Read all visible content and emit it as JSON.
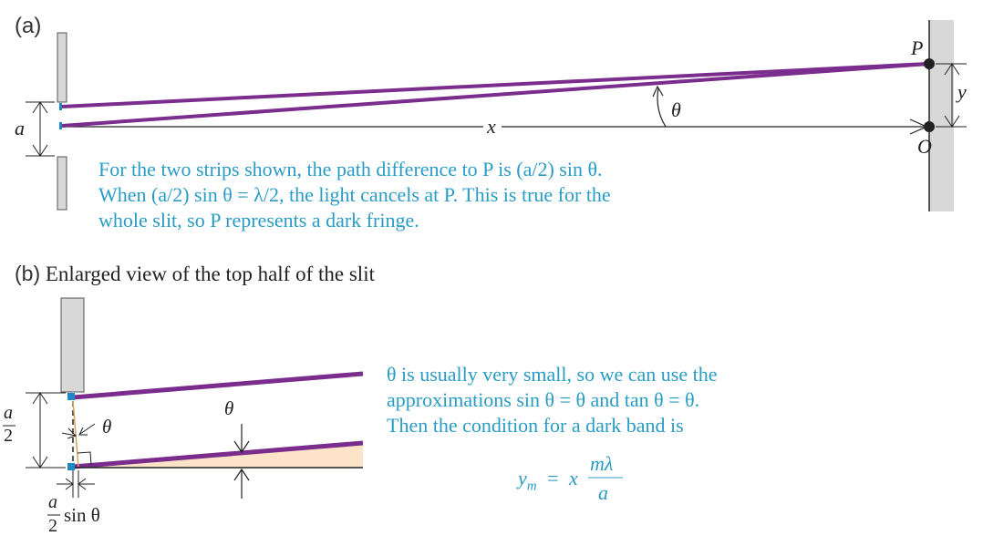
{
  "panel_a": {
    "label": "(a)",
    "symbols": {
      "a": "a",
      "x": "x",
      "theta": "θ",
      "P": "P",
      "O": "O",
      "y": "y"
    },
    "caption": [
      "For the two strips shown, the path difference to P is (a/2) sin θ.",
      "When (a/2) sin θ = λ/2, the light cancels at P. This is true for the",
      "whole slit, so P represents a dark fringe."
    ]
  },
  "panel_b": {
    "label": "(b)",
    "title": "Enlarged view of the top half of the slit",
    "symbols": {
      "theta_left": "θ",
      "theta_top": "θ",
      "a": "a",
      "two": "2",
      "sin_theta": "sin θ"
    },
    "caption": [
      "θ is usually very small, so we can use the",
      "approximations sin θ = θ and tan θ = θ.",
      "Then the condition for a dark band is"
    ],
    "equation": {
      "lhs": "y",
      "sub": "m",
      "eq": "=",
      "x": "x",
      "num": "mλ",
      "den": "a"
    }
  },
  "colors": {
    "ray": "#7b2d8e",
    "caption": "#2a9cc4",
    "screen": "#d8d8d8",
    "wedge": "#fde4c8",
    "slit_edge": "#1e88c8"
  }
}
